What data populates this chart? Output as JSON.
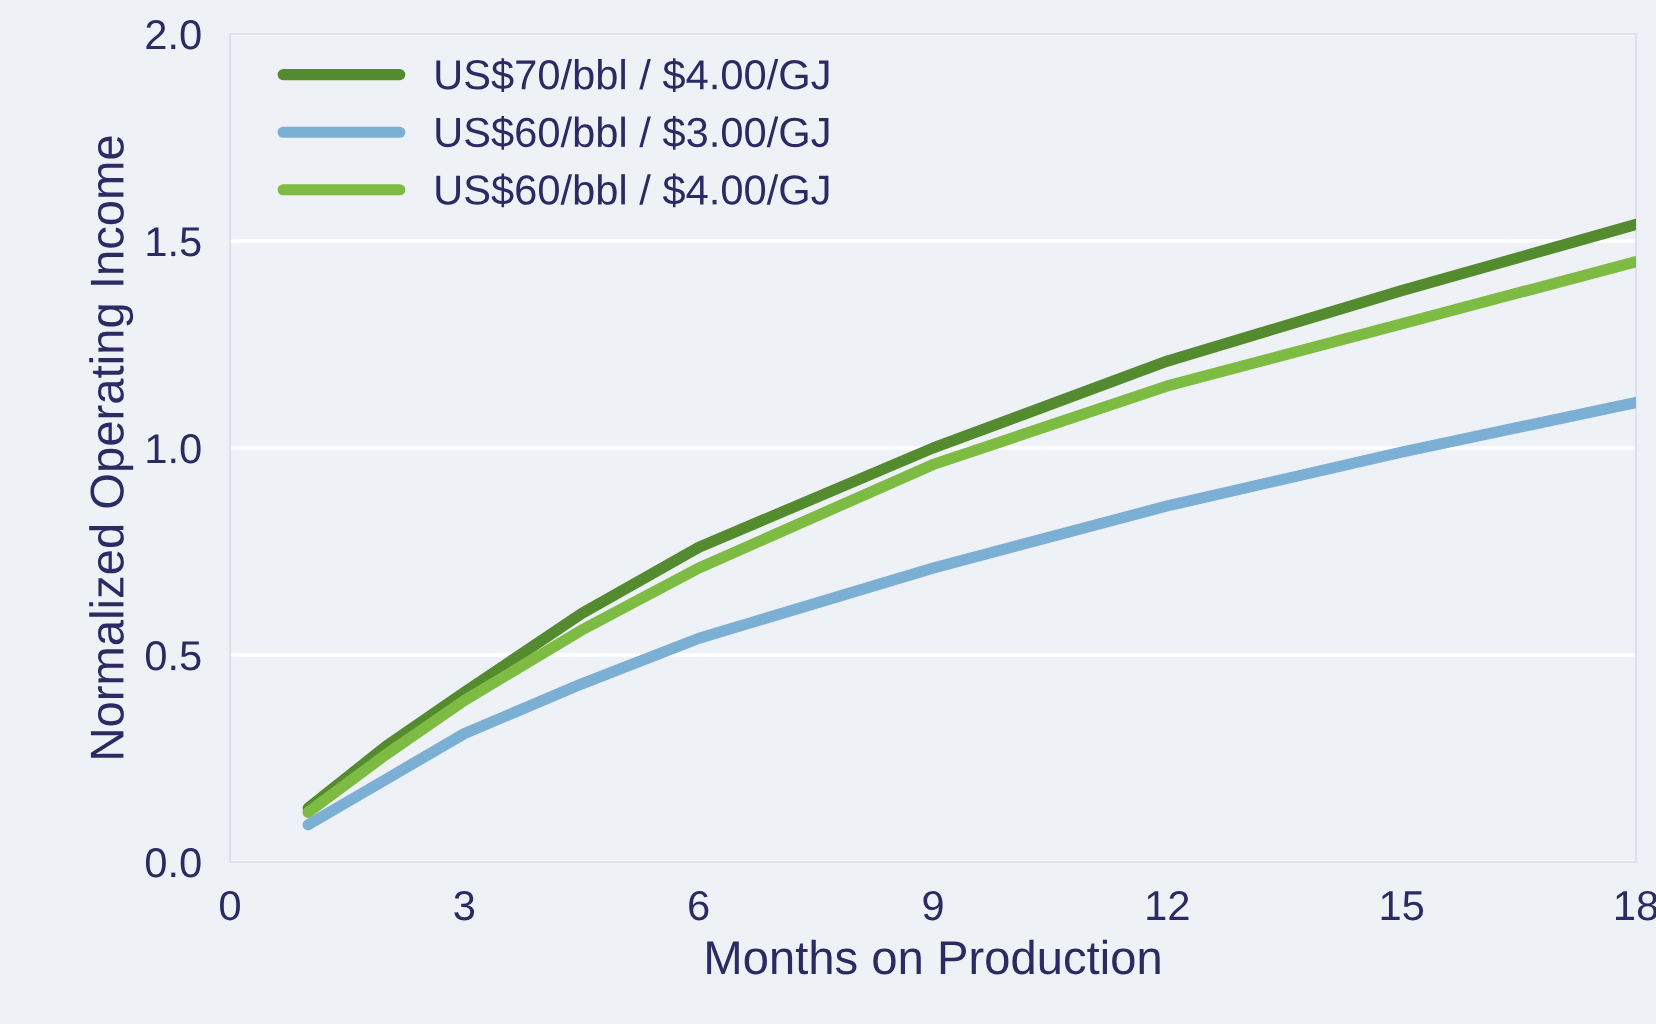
{
  "chart_data": {
    "type": "line",
    "xlabel": "Months on Production",
    "ylabel": "Normalized Operating Income",
    "x": [
      1,
      2,
      3,
      4.5,
      6,
      9,
      12,
      15,
      18
    ],
    "series": [
      {
        "name": "US$70/bbl / $4.00/GJ",
        "color": "#558b2f",
        "values": [
          0.13,
          0.28,
          0.41,
          0.6,
          0.76,
          1.0,
          1.21,
          1.38,
          1.54
        ]
      },
      {
        "name": "US$60/bbl / $3.00/GJ",
        "color": "#7bafd4",
        "values": [
          0.09,
          0.2,
          0.31,
          0.43,
          0.54,
          0.71,
          0.86,
          0.99,
          1.11
        ]
      },
      {
        "name": "US$60/bbl / $4.00/GJ",
        "color": "#7dbb42",
        "values": [
          0.12,
          0.26,
          0.39,
          0.56,
          0.71,
          0.96,
          1.15,
          1.3,
          1.45
        ]
      }
    ],
    "xlim": [
      0,
      18
    ],
    "ylim": [
      0,
      2
    ],
    "xticks": [
      0,
      3,
      6,
      9,
      12,
      15,
      18
    ],
    "yticks": [
      {
        "value": 0,
        "label": "0.0"
      },
      {
        "value": 0.5,
        "label": "0.5"
      },
      {
        "value": 1,
        "label": "1.0"
      },
      {
        "value": 1.5,
        "label": "1.5"
      },
      {
        "value": 2,
        "label": "2.0"
      }
    ],
    "grid": "y",
    "legend": "top left",
    "marker": "none",
    "line_style": "solid"
  }
}
